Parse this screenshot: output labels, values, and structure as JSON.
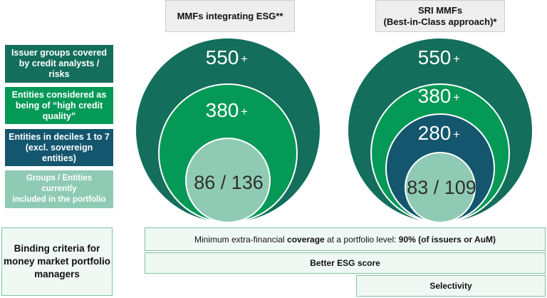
{
  "headers": {
    "left": {
      "lines": [
        "MMFs integrating ESG**"
      ]
    },
    "right": {
      "lines": [
        "SRI MMFs",
        "(Best-in-Class approach)*"
      ]
    }
  },
  "legend": [
    {
      "lines": [
        "Issuer groups covered",
        "by credit analysts / risks"
      ],
      "color": "#136e5b"
    },
    {
      "lines": [
        "Entities considered as",
        "being of “high credit",
        "quality”"
      ],
      "color": "#049957"
    },
    {
      "lines": [
        "Entities  in deciles 1 to 7",
        "(excl. sovereign entities)"
      ],
      "color": "#13566e"
    },
    {
      "lines": [
        "Groups / Entities currently",
        "included in the portfolio"
      ],
      "color": "#8fcbb4"
    }
  ],
  "left_diagram": {
    "outer": {
      "value": "550",
      "suffix": "+"
    },
    "middle": {
      "value": "380",
      "suffix": "+"
    },
    "inner": {
      "value": "86 / 136"
    }
  },
  "right_diagram": {
    "outer": {
      "value": "550",
      "suffix": "+"
    },
    "middle": {
      "value": "380",
      "suffix": "+"
    },
    "deciles": {
      "value": "280",
      "suffix": "+"
    },
    "inner": {
      "value": "83 / 109"
    }
  },
  "binding": {
    "lines": [
      "Binding criteria for",
      "money market portfolio",
      "managers"
    ]
  },
  "criteria": {
    "coverage": {
      "pre": "Minimum extra-financial ",
      "bold": "coverage",
      "mid": " at a portfolio level:  ",
      "bold2": "90% (of issuers or AuM)"
    },
    "esg_score": "Better ESG score",
    "selectivity": "Selectivity"
  },
  "colors": {
    "outer": "#136e5b",
    "middle": "#049957",
    "deciles": "#13566e",
    "inner": "#8fcbb4",
    "ring_stroke": "#ffffff"
  }
}
